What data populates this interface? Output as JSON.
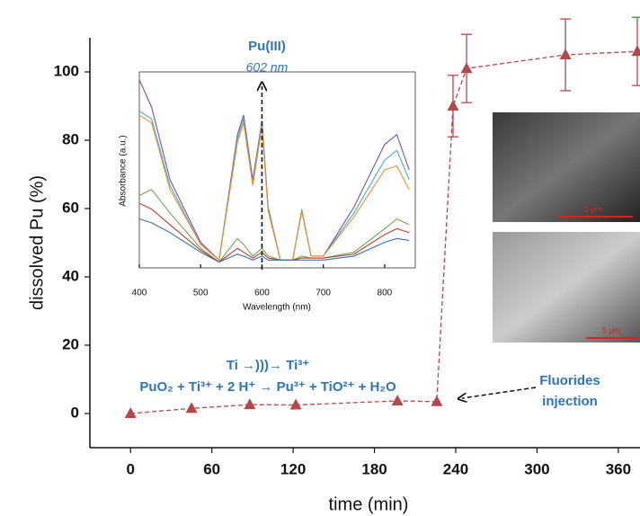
{
  "chart_data": {
    "type": "line",
    "x_label": "time (min)",
    "y_label": "dissolved Pu (%)",
    "x": [
      0,
      45,
      88,
      122,
      197,
      226,
      238,
      248,
      321,
      374
    ],
    "series": [
      {
        "color": "#b5474b",
        "values": [
          0,
          1.5,
          2.6,
          2.5,
          3.7,
          3.5,
          90,
          101,
          105,
          106
        ],
        "errors": [
          null,
          null,
          null,
          null,
          null,
          null,
          9,
          10,
          10.5,
          10
        ]
      }
    ],
    "xlim": [
      -30,
      376
    ],
    "xticks": [
      0,
      60,
      120,
      180,
      240,
      300,
      360
    ],
    "ylim": [
      -10,
      110
    ],
    "yticks": [
      0,
      20,
      40,
      60,
      80,
      100
    ],
    "annotations": {
      "reactions": [
        "Ti →)))→ Ti³⁺",
        "PuO₂ + Ti³⁺ + 2 H⁺ → Pu³⁺ + TiO²⁺ + H₂O"
      ],
      "injection": [
        "Fluorides",
        "injection"
      ]
    },
    "sem_scale_labels": [
      "5 µm",
      "5 µm"
    ],
    "inset": {
      "type": "line",
      "x_label": "Wavelength (nm)",
      "y_label": "Absorbance (a.u.)",
      "annotations": [
        "Pu(III)",
        "602 nm"
      ],
      "marker_x": 600,
      "xlim": [
        400,
        850
      ],
      "xticks": [
        400,
        500,
        600,
        700,
        800
      ],
      "ylim": [
        0,
        1
      ],
      "x": [
        400,
        420,
        450,
        500,
        530,
        560,
        570,
        585,
        600,
        610,
        630,
        650,
        665,
        680,
        700,
        750,
        800,
        820,
        840
      ],
      "series": [
        {
          "color": "#7b4fb0",
          "values": [
            0.96,
            0.82,
            0.45,
            0.13,
            0.04,
            0.68,
            0.78,
            0.45,
            0.75,
            0.31,
            0.04,
            0.04,
            0.29,
            0.06,
            0.06,
            0.31,
            0.63,
            0.68,
            0.5
          ]
        },
        {
          "color": "#3fb0c8",
          "values": [
            0.8,
            0.76,
            0.42,
            0.12,
            0.04,
            0.66,
            0.76,
            0.43,
            0.74,
            0.3,
            0.04,
            0.04,
            0.3,
            0.06,
            0.06,
            0.28,
            0.55,
            0.6,
            0.45
          ]
        },
        {
          "color": "#f0902a",
          "values": [
            0.78,
            0.74,
            0.4,
            0.12,
            0.04,
            0.64,
            0.74,
            0.42,
            0.72,
            0.29,
            0.04,
            0.04,
            0.29,
            0.06,
            0.06,
            0.26,
            0.5,
            0.52,
            0.4
          ]
        },
        {
          "color": "#6aa84f",
          "values": [
            0.37,
            0.4,
            0.28,
            0.1,
            0.03,
            0.15,
            0.12,
            0.06,
            0.1,
            0.06,
            0.04,
            0.04,
            0.06,
            0.05,
            0.05,
            0.08,
            0.2,
            0.25,
            0.22
          ]
        },
        {
          "color": "#c0392b",
          "values": [
            0.33,
            0.3,
            0.22,
            0.09,
            0.03,
            0.1,
            0.08,
            0.05,
            0.08,
            0.05,
            0.04,
            0.04,
            0.05,
            0.05,
            0.05,
            0.07,
            0.17,
            0.2,
            0.18
          ]
        },
        {
          "color": "#3b6fb6",
          "values": [
            0.25,
            0.23,
            0.18,
            0.08,
            0.03,
            0.07,
            0.06,
            0.04,
            0.06,
            0.04,
            0.04,
            0.04,
            0.04,
            0.04,
            0.04,
            0.06,
            0.13,
            0.15,
            0.14
          ]
        }
      ]
    }
  }
}
